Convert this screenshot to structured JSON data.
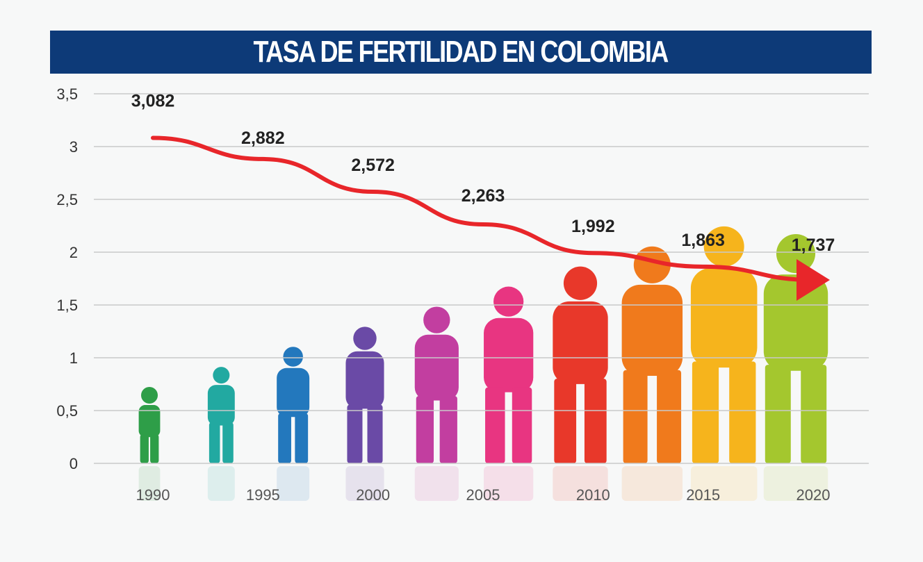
{
  "chart_data": {
    "type": "line",
    "title": "TASA DE FERTILIDAD EN COLOMBIA",
    "xlabel": "",
    "ylabel": "",
    "x": [
      1990,
      1995,
      2000,
      2005,
      2010,
      2015,
      2020
    ],
    "x_tick_labels": [
      "1990",
      "1995",
      "2000",
      "2005",
      "2010",
      "2015",
      "2020"
    ],
    "y_tick_labels": [
      "0",
      "0,5",
      "1",
      "1,5",
      "2",
      "2,5",
      "3",
      "3,5"
    ],
    "series": [
      {
        "values": [
          3.082,
          2.882,
          2.572,
          2.263,
          1.992,
          1.863,
          1.737
        ],
        "labels": [
          "3,082",
          "2,882",
          "2,572",
          "2,263",
          "1,992",
          "1,863",
          "1,737"
        ],
        "color": "#e8262a"
      }
    ],
    "ylim": [
      0,
      3.5
    ],
    "grid": true,
    "legend": "none",
    "decoration": "silhouettes of human life stages from baby to elderly",
    "figure_colors": [
      "#2e9e48",
      "#22a9a1",
      "#2378bd",
      "#6a4aa6",
      "#c23ea0",
      "#e83581",
      "#e8382a",
      "#f07a1c",
      "#f6b41c",
      "#a4c72e"
    ]
  }
}
